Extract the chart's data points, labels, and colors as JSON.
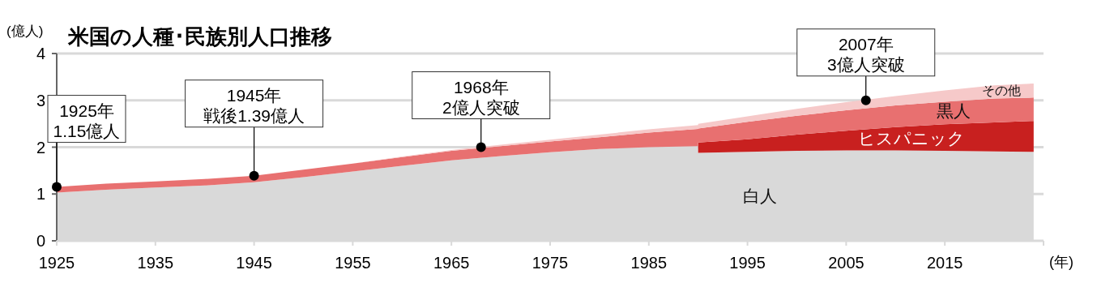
{
  "chart_data": {
    "type": "area",
    "stacked": true,
    "title": "米国の人種･民族別人口推移",
    "ylabel": "(億人)",
    "xlabel": "(年)",
    "x": [
      1925,
      1930,
      1935,
      1940,
      1945,
      1950,
      1955,
      1960,
      1965,
      1970,
      1975,
      1980,
      1985,
      1990,
      1990,
      1995,
      2000,
      2005,
      2010,
      2015,
      2020,
      2024
    ],
    "series": [
      {
        "name": "白人",
        "color": "#d9d9d9",
        "values": [
          1.03,
          1.09,
          1.14,
          1.18,
          1.25,
          1.36,
          1.48,
          1.6,
          1.72,
          1.81,
          1.89,
          1.96,
          2.0,
          2.02,
          1.88,
          1.9,
          1.92,
          1.93,
          1.93,
          1.92,
          1.91,
          1.9
        ]
      },
      {
        "name": "ヒスパニック",
        "color": "#c8201f",
        "values": [
          null,
          null,
          null,
          null,
          null,
          null,
          null,
          null,
          null,
          null,
          null,
          null,
          null,
          null,
          0.22,
          0.27,
          0.35,
          0.42,
          0.5,
          0.57,
          0.62,
          0.66
        ]
      },
      {
        "name": "黒人",
        "color": "#e87070",
        "values": [
          0.12,
          0.13,
          0.13,
          0.14,
          0.14,
          0.16,
          0.17,
          0.19,
          0.2,
          0.21,
          0.23,
          0.25,
          0.31,
          0.37,
          0.3,
          0.37,
          0.4,
          0.44,
          0.46,
          0.48,
          0.51,
          0.5
        ]
      },
      {
        "name": "その他",
        "color": "#f6c9c9",
        "values": [
          0,
          0,
          0,
          0,
          0,
          0,
          0,
          0.01,
          0.02,
          0.03,
          0.04,
          0.06,
          0.07,
          0.08,
          0.1,
          0.12,
          0.15,
          0.17,
          0.2,
          0.24,
          0.28,
          0.3
        ]
      }
    ],
    "xlim": [
      1925,
      2025
    ],
    "xticks": [
      1925,
      1935,
      1945,
      1955,
      1965,
      1975,
      1985,
      1995,
      2005,
      2015
    ],
    "ylim": [
      0,
      4
    ],
    "yticks": [
      0,
      1,
      2,
      3,
      4
    ],
    "grid": "y",
    "legend": false,
    "annotations": [
      "1925年",
      {
        "text": "1.15億人",
        "x": 1925,
        "y": 1.15
      },
      "1945年",
      {
        "text": "戦後1.39億人",
        "x": 1945,
        "y": 1.39
      },
      "1968年",
      {
        "text": "2億人突破",
        "x": 1968,
        "y": 2
      },
      "2007年",
      {
        "text": "3億人突破",
        "x": 2007,
        "y": 3
      }
    ]
  }
}
